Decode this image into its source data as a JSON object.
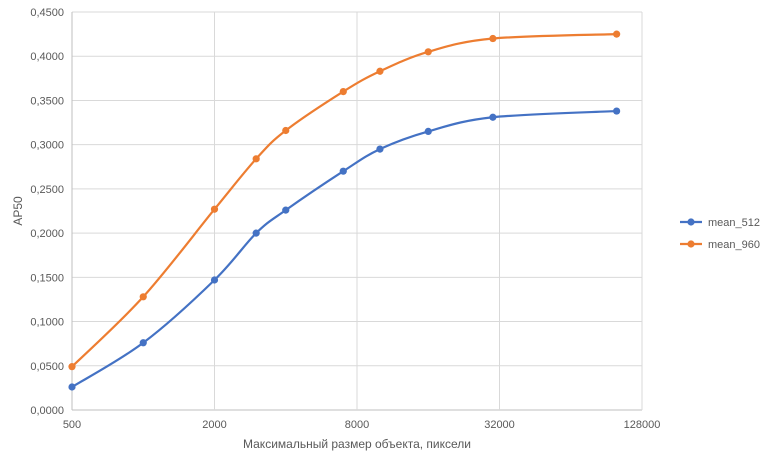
{
  "chart_data": {
    "type": "line",
    "xlabel": "Максимальный размер объекта, пиксели",
    "ylabel": "AP50",
    "x_scale": "log2",
    "xlim": [
      500,
      128000
    ],
    "ylim": [
      0,
      0.45
    ],
    "x_ticks": [
      500,
      2000,
      8000,
      32000,
      128000
    ],
    "x_tick_labels": [
      "500",
      "2000",
      "8000",
      "32000",
      "128000"
    ],
    "y_ticks": [
      0,
      0.05,
      0.1,
      0.15,
      0.2,
      0.25,
      0.3,
      0.35,
      0.4,
      0.45
    ],
    "y_tick_labels": [
      "0,0000",
      "0,0500",
      "0,1000",
      "0,1500",
      "0,2000",
      "0,2500",
      "0,3000",
      "0,3500",
      "0,4000",
      "0,4500"
    ],
    "grid": "vertical and horizontal",
    "legend": "right",
    "x": [
      500,
      1000,
      2000,
      3000,
      4000,
      7000,
      10000,
      16000,
      30000,
      100000
    ],
    "series": [
      {
        "name": "mean_512",
        "color": "#4472c4",
        "values": [
          0.026,
          0.076,
          0.147,
          0.2,
          0.226,
          0.27,
          0.295,
          0.315,
          0.331,
          0.338
        ]
      },
      {
        "name": "mean_960",
        "color": "#ed7d31",
        "values": [
          0.049,
          0.128,
          0.227,
          0.284,
          0.316,
          0.36,
          0.383,
          0.405,
          0.42,
          0.425
        ]
      }
    ]
  }
}
